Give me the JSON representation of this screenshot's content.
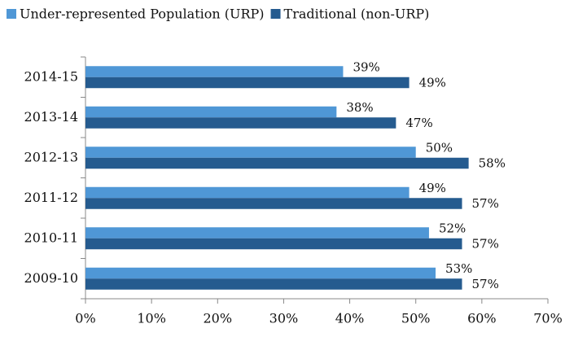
{
  "chart_data": {
    "type": "hbar",
    "categories": [
      "2014-15",
      "2013-14",
      "2012-13",
      "2011-12",
      "2010-11",
      "2009-10"
    ],
    "series": [
      {
        "name": "Under-represented Population (URP)",
        "color": "#4f97d6",
        "values": [
          39,
          38,
          50,
          49,
          52,
          53
        ],
        "value_labels": [
          "39%",
          "38%",
          "50%",
          "49%",
          "52%",
          "53%"
        ]
      },
      {
        "name": "Traditional (non-URP)",
        "color": "#255b8f",
        "values": [
          49,
          47,
          58,
          57,
          57,
          57
        ],
        "value_labels": [
          "49%",
          "47%",
          "58%",
          "57%",
          "57%",
          "57%"
        ]
      }
    ],
    "xlim": [
      0,
      70
    ],
    "xticks": [
      {
        "value": 0,
        "label": "0%"
      },
      {
        "value": 10,
        "label": "10%"
      },
      {
        "value": 20,
        "label": "20%"
      },
      {
        "value": 30,
        "label": "30%"
      },
      {
        "value": 40,
        "label": "40%"
      },
      {
        "value": 50,
        "label": "50%"
      },
      {
        "value": 60,
        "label": "60%"
      },
      {
        "value": 70,
        "label": "70%"
      }
    ],
    "legend": "top"
  }
}
